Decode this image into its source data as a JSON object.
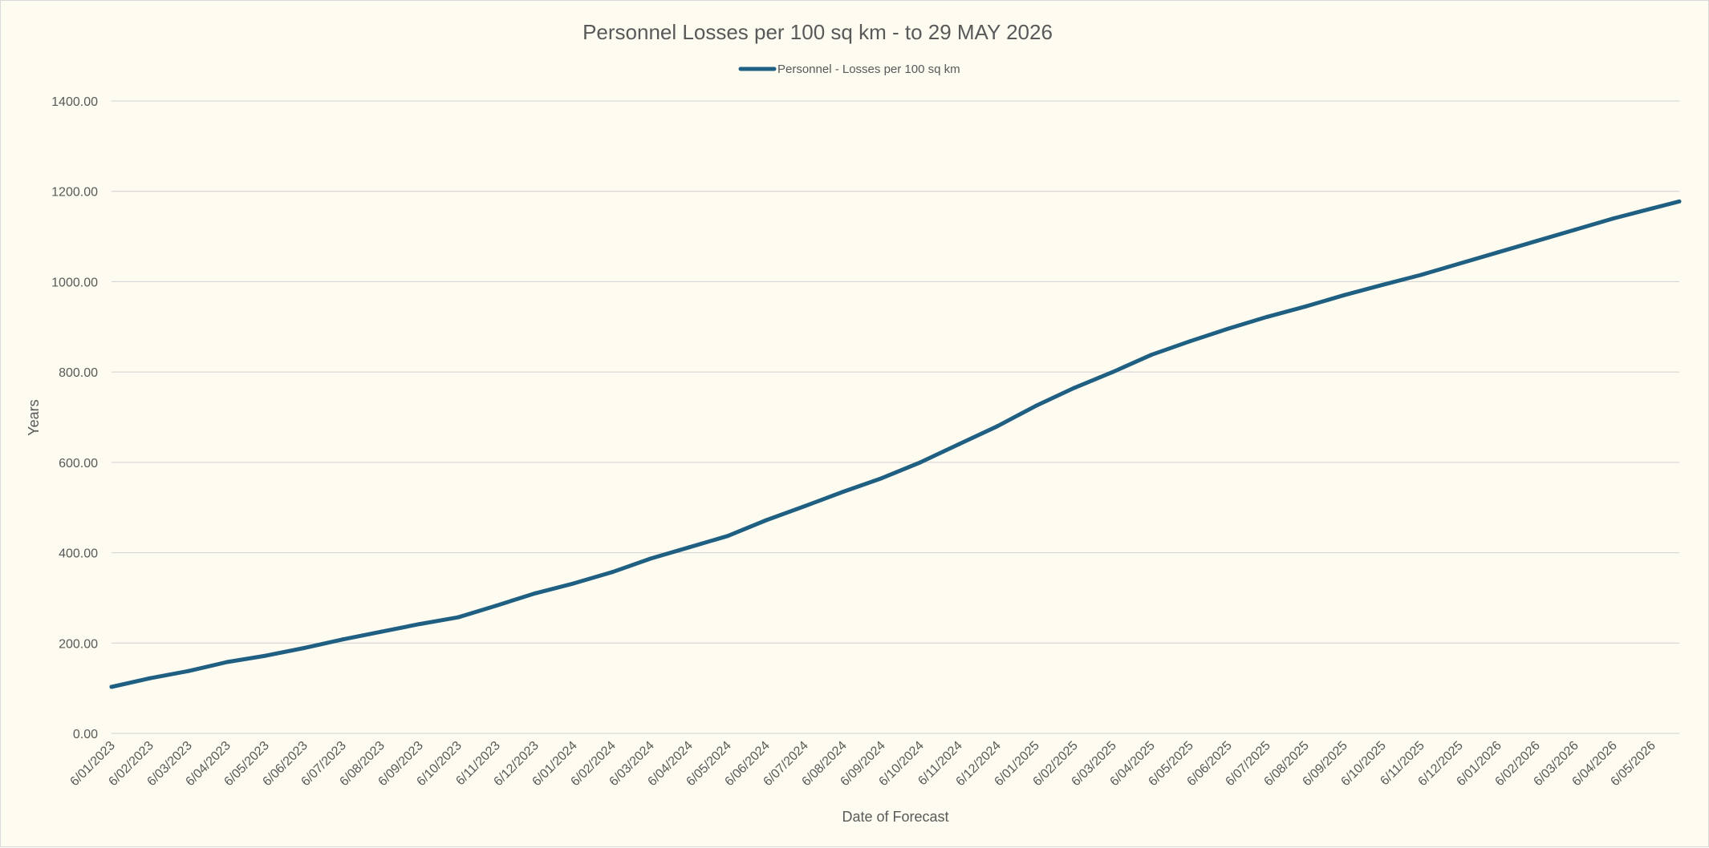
{
  "chart_data": {
    "type": "line",
    "title": "Personnel Losses per 100 sq km - to 29 MAY 2026",
    "xlabel": "Date of Forecast",
    "ylabel": "Years",
    "ylim": [
      0,
      1400
    ],
    "y_ticks": [
      "0.00",
      "200.00",
      "400.00",
      "600.00",
      "800.00",
      "1000.00",
      "1200.00",
      "1400.00"
    ],
    "legend_position": "top",
    "grid": true,
    "line_color": "#1f5f82",
    "categories": [
      "6/01/2023",
      "6/02/2023",
      "6/03/2023",
      "6/04/2023",
      "6/05/2023",
      "6/06/2023",
      "6/07/2023",
      "6/08/2023",
      "6/09/2023",
      "6/10/2023",
      "6/11/2023",
      "6/12/2023",
      "6/01/2024",
      "6/02/2024",
      "6/03/2024",
      "6/04/2024",
      "6/05/2024",
      "6/06/2024",
      "6/07/2024",
      "6/08/2024",
      "6/09/2024",
      "6/10/2024",
      "6/11/2024",
      "6/12/2024",
      "6/01/2025",
      "6/02/2025",
      "6/03/2025",
      "6/04/2025",
      "6/05/2025",
      "6/06/2025",
      "6/07/2025",
      "6/08/2025",
      "6/09/2025",
      "6/10/2025",
      "6/11/2025",
      "6/12/2025",
      "6/01/2026",
      "6/02/2026",
      "6/03/2026",
      "6/04/2026",
      "6/05/2026"
    ],
    "series": [
      {
        "name": "Personnel - Losses per 100 sq km",
        "values": [
          103,
          122,
          138,
          158,
          172,
          189,
          208,
          225,
          242,
          257,
          283,
          310,
          332,
          357,
          387,
          412,
          437,
          472,
          503,
          535,
          565,
          600,
          640,
          680,
          725,
          765,
          800,
          838,
          868,
          896,
          922,
          945,
          970,
          993,
          1015,
          1040,
          1065,
          1090,
          1115,
          1140,
          1162
        ]
      }
    ]
  }
}
